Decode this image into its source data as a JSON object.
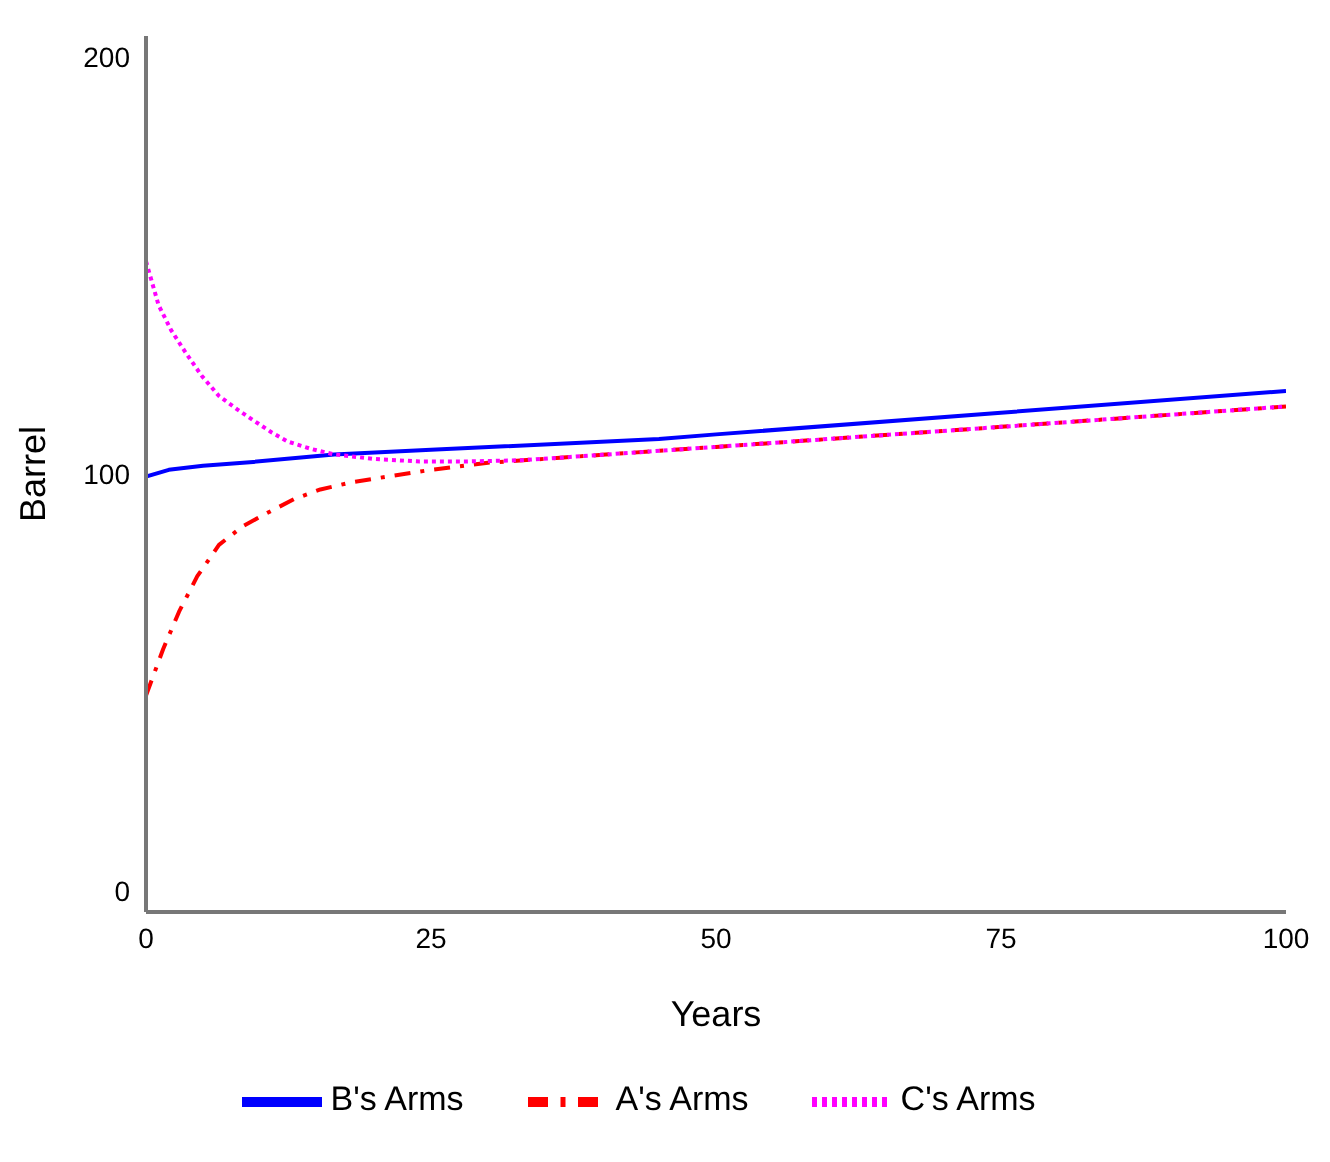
{
  "chart_data": {
    "type": "line",
    "xlabel": "Years",
    "ylabel": "Barrel",
    "xlim": [
      0,
      100
    ],
    "xticks": [
      0,
      25,
      50,
      75,
      100
    ],
    "ylim": [
      -5,
      205
    ],
    "yticks": [
      0,
      100,
      200
    ],
    "grid": false,
    "legend": "bottom",
    "marker": "none",
    "series": [
      {
        "name": "B's Arms",
        "color": "#0000ff",
        "line_style": "solid",
        "x": [
          0,
          2,
          5,
          9.4,
          16.5,
          25,
          45,
          50,
          75,
          100
        ],
        "values": [
          99.4,
          101,
          102,
          102.9,
          104.7,
          105.8,
          108.4,
          109.5,
          114.7,
          119.9
        ]
      },
      {
        "name": "A's Arms",
        "color": "#ff0000",
        "line_style": "dashdot",
        "x": [
          0,
          1.5,
          2.9,
          4.5,
          6.4,
          8.5,
          10.6,
          13,
          15.3,
          18,
          21.2,
          25,
          30,
          40,
          50,
          75,
          100
        ],
        "values": [
          46.9,
          58,
          67,
          75.5,
          83,
          87.5,
          90.6,
          94,
          96.3,
          98,
          99.4,
          101,
          102.7,
          104.6,
          106.5,
          111.3,
          116.2
        ]
      },
      {
        "name": "C's Arms",
        "color": "#ff00ff",
        "line_style": "dotted",
        "x": [
          0,
          1.1,
          2.2,
          3.5,
          4.9,
          6.4,
          8,
          9.4,
          11,
          12.4,
          14.5,
          16.5,
          20,
          24,
          28,
          33,
          40,
          50,
          75,
          100
        ],
        "values": [
          151,
          140.5,
          134.5,
          129,
          123.5,
          118.7,
          115.5,
          112.9,
          110,
          107.8,
          106,
          104.7,
          103.6,
          103,
          103,
          103.3,
          104.6,
          106.5,
          111.3,
          116.2
        ]
      }
    ]
  }
}
